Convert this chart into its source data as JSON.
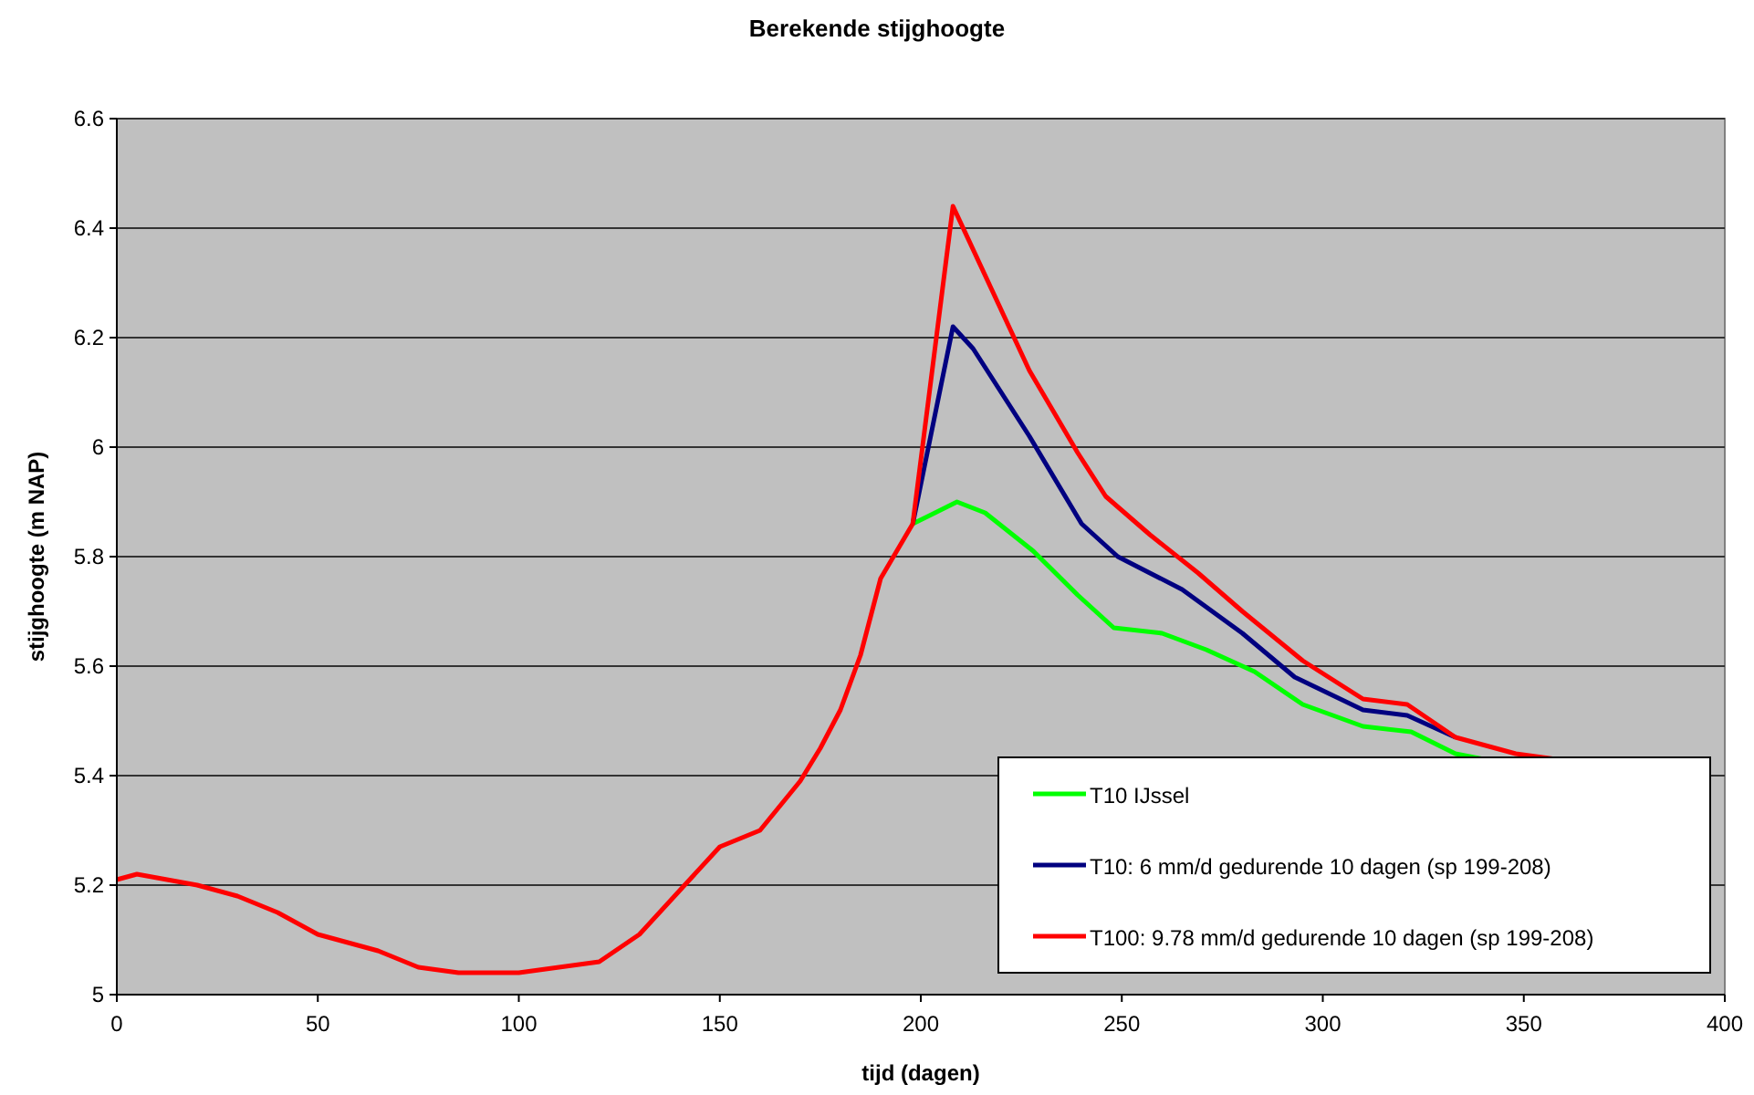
{
  "chart_data": {
    "type": "line",
    "title": "Berekende stijghoogte",
    "xlabel": "tijd (dagen)",
    "ylabel": "stijghoogte (m NAP)",
    "xlim": [
      0,
      400
    ],
    "xticks": [
      0,
      50,
      100,
      150,
      200,
      250,
      300,
      350,
      400
    ],
    "ylim": [
      5,
      6.6
    ],
    "yticks": [
      5,
      5.2,
      5.4,
      5.6,
      5.8,
      6,
      6.2,
      6.4,
      6.6
    ],
    "grid": "y",
    "legend": "bottom right",
    "line_style": "solid",
    "marker": "none",
    "series": [
      {
        "name": "T10 IJssel",
        "color": "#00ff00",
        "x": [
          198,
          209,
          216,
          228,
          239,
          248,
          260,
          271,
          283,
          295,
          310,
          322,
          333,
          340
        ],
        "values": [
          5.86,
          5.9,
          5.88,
          5.81,
          5.73,
          5.67,
          5.66,
          5.63,
          5.59,
          5.53,
          5.49,
          5.48,
          5.44,
          5.43
        ]
      },
      {
        "name": "T10: 6 mm/d gedurende 10 dagen (sp 199-208)",
        "color": "#000080",
        "x": [
          198,
          208,
          213,
          227,
          240,
          249,
          265,
          280,
          293,
          310,
          321,
          333
        ],
        "values": [
          5.86,
          6.22,
          6.18,
          6.02,
          5.86,
          5.8,
          5.74,
          5.66,
          5.58,
          5.52,
          5.51,
          5.47
        ]
      },
      {
        "name": "T100: 9.78 mm/d gedurende 10 dagen (sp 199-208)",
        "color": "#ff0000",
        "x": [
          0,
          5,
          20,
          30,
          40,
          50,
          60,
          65,
          75,
          85,
          100,
          110,
          120,
          130,
          140,
          150,
          160,
          170,
          175,
          180,
          185,
          190,
          198,
          208,
          227,
          239,
          246,
          257,
          269,
          280,
          295,
          310,
          321,
          333,
          348,
          358
        ],
        "values": [
          5.21,
          5.22,
          5.2,
          5.18,
          5.15,
          5.11,
          5.09,
          5.08,
          5.05,
          5.04,
          5.04,
          5.05,
          5.06,
          5.11,
          5.19,
          5.27,
          5.3,
          5.39,
          5.45,
          5.52,
          5.62,
          5.76,
          5.86,
          6.44,
          6.14,
          5.99,
          5.91,
          5.84,
          5.77,
          5.7,
          5.61,
          5.54,
          5.53,
          5.47,
          5.44,
          5.43
        ]
      }
    ]
  }
}
